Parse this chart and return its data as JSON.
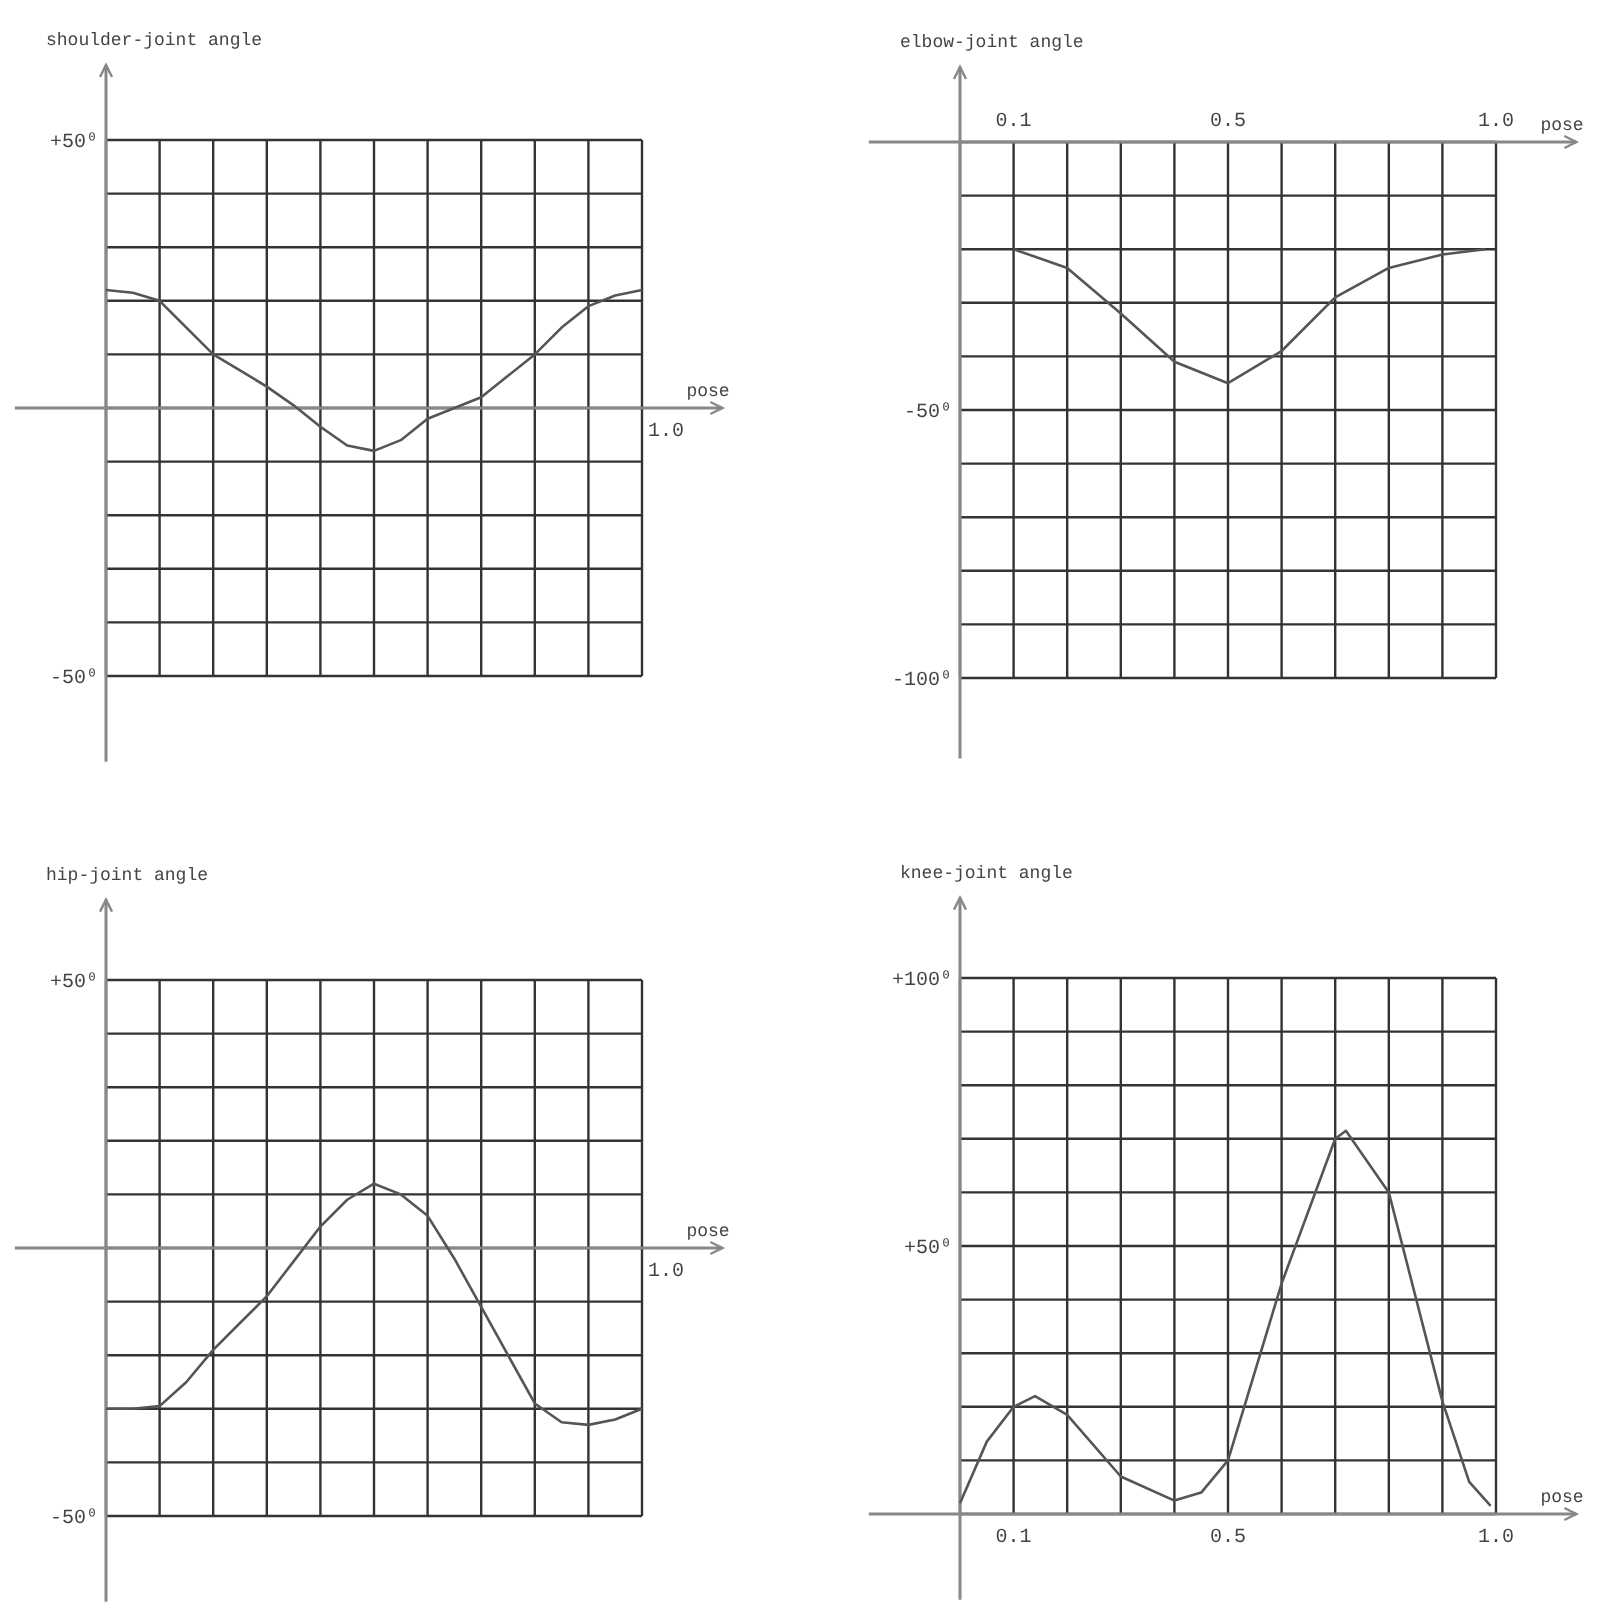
{
  "chart_data": [
    {
      "type": "line",
      "ylabel": "shoulder-joint angle",
      "xlabel": "pose",
      "ylim": [
        -66,
        64
      ],
      "yticks": [
        {
          "value": 50,
          "label": "+50⁰"
        },
        {
          "value": 40,
          "label": null
        },
        {
          "value": 30,
          "label": null
        },
        {
          "value": 20,
          "label": null
        },
        {
          "value": 10,
          "label": null
        },
        {
          "value": 0,
          "label": null
        },
        {
          "value": -10,
          "label": null
        },
        {
          "value": -20,
          "label": null
        },
        {
          "value": -30,
          "label": null
        },
        {
          "value": -40,
          "label": null
        },
        {
          "value": -50,
          "label": "-50⁰"
        }
      ],
      "grid": true,
      "color": "#555555",
      "annotations": [
        "1.0"
      ],
      "categories": [
        null,
        null,
        null,
        null,
        null,
        null,
        null,
        null,
        null,
        null,
        null,
        null,
        null,
        null,
        null,
        null,
        null,
        null,
        null,
        null,
        null
      ],
      "values": [
        22,
        21.5,
        20,
        15,
        10,
        7,
        4,
        0.5,
        -3.5,
        -7,
        -8,
        -6,
        -2,
        0,
        2,
        6,
        10,
        15,
        19,
        21,
        22
      ]
    },
    {
      "type": "line",
      "ylabel": "elbow-joint angle",
      "xlabel": "pose",
      "xlim": [
        -0.17,
        1.15
      ],
      "ylim": [
        -115,
        14
      ],
      "xticks": [
        {
          "value": 0,
          "label": null
        },
        {
          "value": 0.1,
          "label": "0.1"
        },
        {
          "value": 0.2,
          "label": null
        },
        {
          "value": 0.3,
          "label": null
        },
        {
          "value": 0.4,
          "label": null
        },
        {
          "value": 0.5,
          "label": "0.5"
        },
        {
          "value": 0.6,
          "label": null
        },
        {
          "value": 0.7,
          "label": null
        },
        {
          "value": 0.8,
          "label": null
        },
        {
          "value": 0.9,
          "label": null
        },
        {
          "value": 1,
          "label": "1.0"
        }
      ],
      "yticks": [
        {
          "value": 0,
          "label": null
        },
        {
          "value": -10,
          "label": null
        },
        {
          "value": -20,
          "label": null
        },
        {
          "value": -30,
          "label": null
        },
        {
          "value": -40,
          "label": null
        },
        {
          "value": -50,
          "label": "-50⁰"
        },
        {
          "value": -60,
          "label": null
        },
        {
          "value": -70,
          "label": null
        },
        {
          "value": -80,
          "label": null
        },
        {
          "value": -90,
          "label": null
        },
        {
          "value": -100,
          "label": "-100⁰"
        }
      ],
      "grid": true,
      "color": "#555555",
      "x": [
        0.1,
        0.2,
        0.3,
        0.4,
        0.5,
        0.6,
        0.7,
        0.8,
        0.9,
        0.98
      ],
      "values": [
        -20,
        -23.5,
        -32,
        -41,
        -45,
        -39,
        -29,
        -23.5,
        -21,
        -20
      ]
    },
    {
      "type": "line",
      "ylabel": "hip-joint angle",
      "xlabel": "pose",
      "ylim": [
        -66,
        65
      ],
      "yticks": [
        {
          "value": 50,
          "label": "+50⁰"
        },
        {
          "value": 40,
          "label": null
        },
        {
          "value": 30,
          "label": null
        },
        {
          "value": 20,
          "label": null
        },
        {
          "value": 10,
          "label": null
        },
        {
          "value": 0,
          "label": null
        },
        {
          "value": -10,
          "label": null
        },
        {
          "value": -20,
          "label": null
        },
        {
          "value": -30,
          "label": null
        },
        {
          "value": -40,
          "label": null
        },
        {
          "value": -50,
          "label": "-50⁰"
        }
      ],
      "grid": true,
      "color": "#555555",
      "annotations": [
        "1.0"
      ],
      "categories": [
        null,
        null,
        null,
        null,
        null,
        null,
        null,
        null,
        null,
        null,
        null,
        null,
        null,
        null,
        null,
        null,
        null,
        null,
        null,
        null,
        null
      ],
      "values": [
        -30,
        -30,
        -29.5,
        -25,
        -19,
        -14,
        -9,
        -2.5,
        4,
        9,
        12,
        10,
        6,
        -2,
        -11,
        -20,
        -29,
        -32.5,
        -33,
        -32,
        -30
      ]
    },
    {
      "type": "line",
      "ylabel": "knee-joint angle",
      "xlabel": "pose",
      "xlim": [
        -0.17,
        1.15
      ],
      "ylim": [
        -16,
        115
      ],
      "xticks": [
        {
          "value": 0,
          "label": null
        },
        {
          "value": 0.1,
          "label": "0.1"
        },
        {
          "value": 0.2,
          "label": null
        },
        {
          "value": 0.3,
          "label": null
        },
        {
          "value": 0.4,
          "label": null
        },
        {
          "value": 0.5,
          "label": "0.5"
        },
        {
          "value": 0.6,
          "label": null
        },
        {
          "value": 0.7,
          "label": null
        },
        {
          "value": 0.8,
          "label": null
        },
        {
          "value": 0.9,
          "label": null
        },
        {
          "value": 1,
          "label": "1.0"
        }
      ],
      "yticks": [
        {
          "value": 100,
          "label": "+100⁰"
        },
        {
          "value": 90,
          "label": null
        },
        {
          "value": 80,
          "label": null
        },
        {
          "value": 70,
          "label": null
        },
        {
          "value": 60,
          "label": null
        },
        {
          "value": 50,
          "label": "+50⁰"
        },
        {
          "value": 40,
          "label": null
        },
        {
          "value": 30,
          "label": null
        },
        {
          "value": 20,
          "label": null
        },
        {
          "value": 10,
          "label": null
        },
        {
          "value": 0,
          "label": null
        }
      ],
      "grid": true,
      "color": "#555555",
      "x": [
        0,
        0.05,
        0.1,
        0.14,
        0.2,
        0.3,
        0.4,
        0.45,
        0.5,
        0.6,
        0.7,
        0.72,
        0.8,
        0.9,
        0.95,
        0.99
      ],
      "values": [
        2,
        13.5,
        20,
        22,
        18.5,
        7,
        2.5,
        4,
        10,
        43,
        70,
        71.5,
        60,
        21,
        6,
        1.5
      ]
    }
  ]
}
